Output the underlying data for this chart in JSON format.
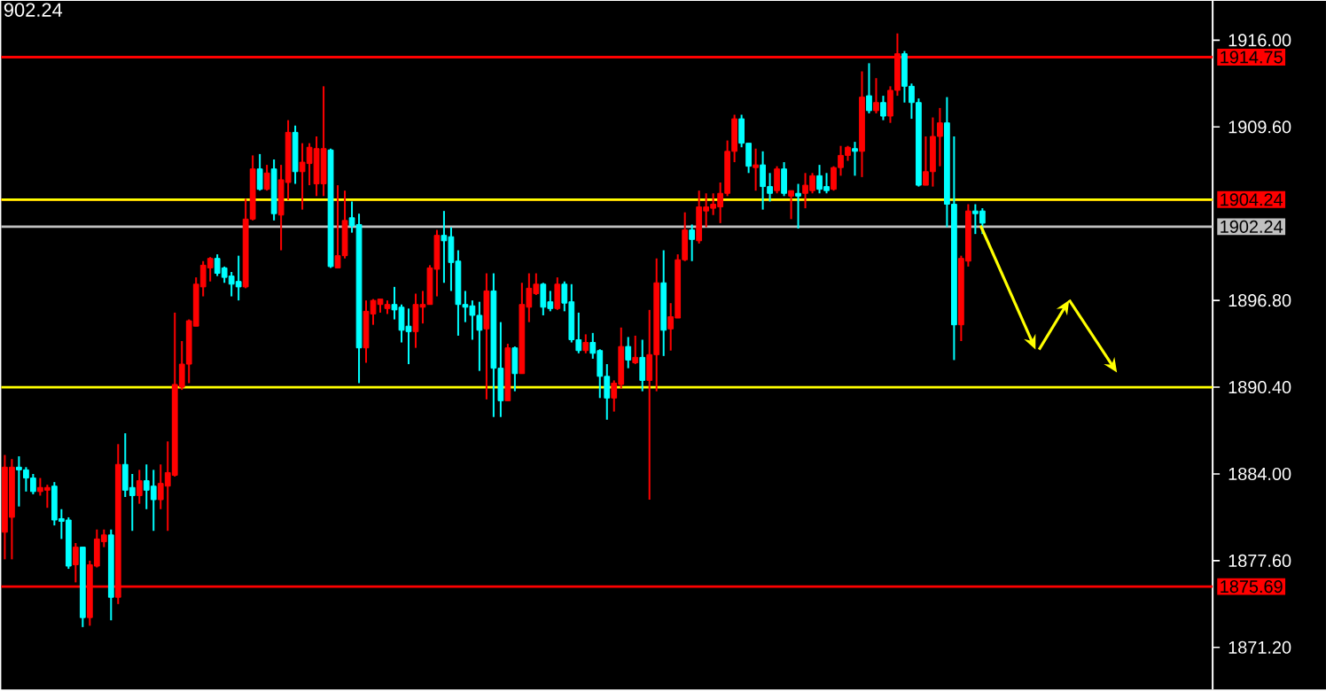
{
  "chart_data": {
    "type": "candlestick",
    "title": "902.24",
    "categories": [
      null,
      null,
      null,
      null,
      null,
      null,
      null,
      null,
      null,
      null,
      null,
      null,
      null,
      null,
      null,
      null,
      null,
      null,
      null,
      null,
      null,
      null,
      null,
      null,
      null,
      null,
      null,
      null,
      null,
      null,
      null,
      null,
      null,
      null,
      null,
      null,
      null,
      null,
      null,
      null,
      null,
      null,
      null,
      null,
      null,
      null,
      null,
      null,
      null,
      null,
      null,
      null,
      null,
      null,
      null,
      null,
      null,
      null,
      null,
      null,
      null,
      null,
      null,
      null,
      null,
      null,
      null,
      null,
      null,
      null,
      null,
      null,
      null,
      null,
      null,
      null,
      null,
      null,
      null,
      null,
      null,
      null,
      null,
      null,
      null,
      null,
      null,
      null,
      null,
      null,
      null,
      null,
      null,
      null,
      null,
      null,
      null,
      null,
      null,
      null,
      null,
      null,
      null,
      null,
      null,
      null,
      null,
      null,
      null,
      null,
      null,
      null,
      null,
      null,
      null,
      null,
      null,
      null,
      null,
      null,
      null,
      null,
      null,
      null,
      null,
      null,
      null,
      null,
      null,
      null,
      null,
      null,
      null,
      null,
      null,
      null,
      null,
      null,
      null,
      null,
      null,
      null,
      null,
      null,
      null,
      null,
      null,
      null,
      null,
      null,
      null,
      null,
      null,
      null,
      null,
      null,
      null,
      null,
      null,
      null,
      null,
      null,
      null,
      null,
      null,
      null,
      null,
      null,
      null,
      null,
      null
    ],
    "ohlc": [
      [
        1879.7,
        1885.4,
        1877.7,
        1884.5
      ],
      [
        1880.8,
        1885.1,
        1877.7,
        1884.5
      ],
      [
        1884.5,
        1885.3,
        1881.6,
        1884.3
      ],
      [
        1884.3,
        1884.5,
        1882.7,
        1883.7
      ],
      [
        1883.7,
        1884.0,
        1882.5,
        1882.7
      ],
      [
        1882.7,
        1883.7,
        1882.4,
        1883.0
      ],
      [
        1882.8,
        1883.2,
        1881.5,
        1883.0
      ],
      [
        1883.1,
        1883.4,
        1880.2,
        1880.6
      ],
      [
        1880.7,
        1881.4,
        1879.2,
        1880.5
      ],
      [
        1880.6,
        1880.8,
        1877.0,
        1877.2
      ],
      [
        1877.3,
        1878.9,
        1876.0,
        1878.6
      ],
      [
        1878.6,
        1878.6,
        1872.7,
        1873.4
      ],
      [
        1873.4,
        1877.6,
        1872.8,
        1877.3
      ],
      [
        1877.2,
        1879.9,
        1877.1,
        1879.2
      ],
      [
        1879.0,
        1879.9,
        1878.6,
        1879.5
      ],
      [
        1879.5,
        1879.9,
        1873.2,
        1874.9
      ],
      [
        1874.9,
        1886.2,
        1874.4,
        1884.7
      ],
      [
        1884.7,
        1887.0,
        1882.3,
        1882.8
      ],
      [
        1883.0,
        1884.0,
        1879.8,
        1882.4
      ],
      [
        1882.4,
        1884.3,
        1881.8,
        1883.5
      ],
      [
        1883.5,
        1884.7,
        1881.4,
        1882.8
      ],
      [
        1883.1,
        1884.3,
        1879.8,
        1882.1
      ],
      [
        1882.1,
        1884.7,
        1881.4,
        1883.3
      ],
      [
        1883.1,
        1886.4,
        1879.8,
        1884.1
      ],
      [
        1883.9,
        1895.9,
        1883.8,
        1890.6
      ],
      [
        1890.4,
        1893.8,
        1890.2,
        1892.1
      ],
      [
        1892.1,
        1895.4,
        1890.7,
        1895.3
      ],
      [
        1894.9,
        1898.5,
        1894.9,
        1898.0
      ],
      [
        1897.8,
        1899.7,
        1897.1,
        1899.4
      ],
      [
        1899.2,
        1900.0,
        1898.2,
        1899.9
      ],
      [
        1899.9,
        1900.2,
        1898.6,
        1898.8
      ],
      [
        1899.2,
        1899.3,
        1898.1,
        1898.5
      ],
      [
        1898.6,
        1898.9,
        1897.1,
        1898.0
      ],
      [
        1898.2,
        1900.1,
        1896.8,
        1897.8
      ],
      [
        1897.8,
        1904.3,
        1897.7,
        1902.8
      ],
      [
        1902.8,
        1907.5,
        1902.7,
        1906.5
      ],
      [
        1906.5,
        1907.6,
        1904.9,
        1905.0
      ],
      [
        1905.0,
        1906.8,
        1904.9,
        1906.2
      ],
      [
        1906.5,
        1907.2,
        1902.7,
        1903.2
      ],
      [
        1903.1,
        1906.8,
        1900.5,
        1905.7
      ],
      [
        1905.5,
        1910.1,
        1904.2,
        1909.2
      ],
      [
        1909.2,
        1909.7,
        1905.4,
        1906.3
      ],
      [
        1906.3,
        1908.4,
        1903.5,
        1907.0
      ],
      [
        1906.9,
        1908.4,
        1905.3,
        1908.1
      ],
      [
        1905.4,
        1908.9,
        1904.5,
        1908.0
      ],
      [
        1905.4,
        1912.6,
        1904.5,
        1908.0
      ],
      [
        1907.9,
        1908.0,
        1899.2,
        1899.3
      ],
      [
        1899.2,
        1905.3,
        1899.2,
        1900.1
      ],
      [
        1900.1,
        1904.9,
        1899.9,
        1902.7
      ],
      [
        1902.9,
        1904.1,
        1901.8,
        1902.3
      ],
      [
        1902.4,
        1903.2,
        1890.7,
        1893.3
      ],
      [
        1893.3,
        1896.8,
        1892.2,
        1896.0
      ],
      [
        1895.8,
        1896.9,
        1895.0,
        1896.8
      ],
      [
        1896.5,
        1896.9,
        1895.9,
        1896.9
      ],
      [
        1896.2,
        1896.8,
        1895.8,
        1896.5
      ],
      [
        1896.5,
        1897.8,
        1895.4,
        1896.1
      ],
      [
        1896.3,
        1896.5,
        1893.7,
        1894.6
      ],
      [
        1894.9,
        1896.2,
        1892.1,
        1894.5
      ],
      [
        1894.5,
        1897.3,
        1893.3,
        1896.5
      ],
      [
        1896.3,
        1897.5,
        1895.1,
        1896.5
      ],
      [
        1896.5,
        1899.4,
        1896.5,
        1899.2
      ],
      [
        1899.1,
        1902.0,
        1897.1,
        1901.6
      ],
      [
        1901.6,
        1903.4,
        1898.1,
        1901.2
      ],
      [
        1901.5,
        1902.2,
        1897.5,
        1899.6
      ],
      [
        1899.7,
        1900.5,
        1894.2,
        1896.5
      ],
      [
        1896.5,
        1897.5,
        1895.2,
        1896.3
      ],
      [
        1896.4,
        1896.8,
        1893.9,
        1895.7
      ],
      [
        1895.7,
        1896.7,
        1891.6,
        1894.6
      ],
      [
        1894.7,
        1898.8,
        1889.5,
        1897.5
      ],
      [
        1897.5,
        1898.8,
        1888.2,
        1891.8
      ],
      [
        1891.8,
        1895.2,
        1888.2,
        1889.4
      ],
      [
        1889.4,
        1893.6,
        1889.4,
        1893.3
      ],
      [
        1893.3,
        1893.4,
        1890.1,
        1891.4
      ],
      [
        1891.4,
        1898.1,
        1891.4,
        1896.5
      ],
      [
        1896.3,
        1898.8,
        1895.2,
        1897.7
      ],
      [
        1897.3,
        1898.8,
        1897.2,
        1898.0
      ],
      [
        1898.0,
        1898.1,
        1895.7,
        1896.3
      ],
      [
        1896.7,
        1897.5,
        1896.0,
        1896.2
      ],
      [
        1896.2,
        1898.5,
        1896.1,
        1898.0
      ],
      [
        1898.0,
        1898.2,
        1896.0,
        1896.6
      ],
      [
        1896.7,
        1898.0,
        1893.7,
        1893.9
      ],
      [
        1893.9,
        1895.9,
        1892.9,
        1893.1
      ],
      [
        1893.1,
        1894.3,
        1892.9,
        1893.7
      ],
      [
        1893.7,
        1894.4,
        1892.5,
        1892.9
      ],
      [
        1893.1,
        1893.2,
        1889.6,
        1891.2
      ],
      [
        1891.2,
        1892.1,
        1888.0,
        1889.6
      ],
      [
        1889.6,
        1890.9,
        1888.6,
        1890.7
      ],
      [
        1890.6,
        1894.8,
        1890.3,
        1893.4
      ],
      [
        1893.4,
        1894.1,
        1891.8,
        1892.4
      ],
      [
        1892.2,
        1894.2,
        1892.1,
        1892.6
      ],
      [
        1892.6,
        1893.9,
        1890.1,
        1890.9
      ],
      [
        1890.9,
        1896.1,
        1882.1,
        1892.8
      ],
      [
        1892.8,
        1899.9,
        1890.1,
        1898.1
      ],
      [
        1898.1,
        1900.5,
        1892.7,
        1894.6
      ],
      [
        1894.7,
        1896.6,
        1893.1,
        1895.6
      ],
      [
        1895.5,
        1900.2,
        1895.5,
        1899.8
      ],
      [
        1899.8,
        1903.3,
        1899.7,
        1902.0
      ],
      [
        1902.0,
        1902.4,
        1899.7,
        1901.3
      ],
      [
        1901.2,
        1904.9,
        1901.0,
        1903.7
      ],
      [
        1903.4,
        1904.7,
        1902.2,
        1903.7
      ],
      [
        1903.6,
        1904.7,
        1903.1,
        1903.9
      ],
      [
        1903.7,
        1905.5,
        1902.5,
        1904.7
      ],
      [
        1904.7,
        1908.6,
        1904.5,
        1907.8
      ],
      [
        1907.8,
        1910.5,
        1907.0,
        1910.2
      ],
      [
        1910.2,
        1910.5,
        1908.1,
        1908.4
      ],
      [
        1908.4,
        1908.4,
        1906.2,
        1906.7
      ],
      [
        1906.6,
        1908.0,
        1904.9,
        1906.8
      ],
      [
        1906.8,
        1907.8,
        1903.5,
        1905.2
      ],
      [
        1905.2,
        1906.2,
        1904.1,
        1904.7
      ],
      [
        1904.9,
        1906.7,
        1904.7,
        1906.5
      ],
      [
        1906.5,
        1907.0,
        1904.5,
        1904.7
      ],
      [
        1904.5,
        1904.9,
        1902.8,
        1904.9
      ],
      [
        1904.7,
        1905.4,
        1902.1,
        1904.5
      ],
      [
        1904.7,
        1906.2,
        1903.6,
        1905.3
      ],
      [
        1904.9,
        1906.2,
        1904.7,
        1906.0
      ],
      [
        1906.0,
        1906.8,
        1904.7,
        1905.0
      ],
      [
        1905.2,
        1906.2,
        1904.7,
        1904.9
      ],
      [
        1905.0,
        1906.7,
        1904.9,
        1906.6
      ],
      [
        1906.6,
        1908.2,
        1906.0,
        1907.5
      ],
      [
        1907.5,
        1908.2,
        1907.1,
        1908.1
      ],
      [
        1908.0,
        1908.5,
        1906.0,
        1907.8
      ],
      [
        1907.8,
        1913.7,
        1905.9,
        1911.8
      ],
      [
        1911.9,
        1914.3,
        1910.6,
        1910.8
      ],
      [
        1910.8,
        1913.2,
        1910.6,
        1911.4
      ],
      [
        1911.4,
        1911.9,
        1910.1,
        1910.4
      ],
      [
        1910.4,
        1912.6,
        1909.9,
        1912.3
      ],
      [
        1912.3,
        1916.5,
        1911.9,
        1915.0
      ],
      [
        1915.0,
        1915.2,
        1911.4,
        1912.6
      ],
      [
        1912.6,
        1912.8,
        1910.2,
        1911.4
      ],
      [
        1911.4,
        1911.7,
        1905.2,
        1905.3
      ],
      [
        1905.3,
        1908.9,
        1905.3,
        1906.3
      ],
      [
        1906.3,
        1910.3,
        1905.2,
        1908.9
      ],
      [
        1908.9,
        1911.0,
        1906.7,
        1909.9
      ],
      [
        1909.9,
        1911.8,
        1902.2,
        1903.9
      ],
      [
        1903.9,
        1908.9,
        1892.4,
        1895.0
      ],
      [
        1895.0,
        1900.1,
        1893.8,
        1899.9
      ],
      [
        1899.7,
        1903.9,
        1899.3,
        1903.4
      ],
      [
        1903.4,
        1903.9,
        1901.7,
        1903.2
      ],
      [
        1903.4,
        1903.6,
        1901.7,
        1902.5
      ],
      null,
      null,
      null,
      null,
      null,
      null,
      null,
      null,
      null,
      null,
      null,
      null,
      null,
      null,
      null,
      null,
      null,
      null,
      null,
      null,
      null,
      null,
      null,
      null,
      null,
      null,
      null,
      null,
      null,
      null,
      null,
      null
    ],
    "colors": [
      "#ff0000",
      "#ff0000",
      "#00ffff",
      "#00ffff",
      "#00ffff",
      "#ff0000",
      "#ff0000",
      "#00ffff",
      "#00ffff",
      "#00ffff",
      "#ff0000",
      "#00ffff",
      "#ff0000",
      "#ff0000",
      "#ff0000",
      "#00ffff",
      "#ff0000",
      "#00ffff",
      "#00ffff",
      "#ff0000",
      "#00ffff",
      "#00ffff",
      "#ff0000",
      "#ff0000",
      "#ff0000",
      "#ff0000",
      "#ff0000",
      "#ff0000",
      "#ff0000",
      "#ff0000",
      "#00ffff",
      "#00ffff",
      "#00ffff",
      "#00ffff",
      "#ff0000",
      "#ff0000",
      "#00ffff",
      "#ff0000",
      "#00ffff",
      "#ff0000",
      "#ff0000",
      "#00ffff",
      "#ff0000",
      "#ff0000",
      "#ff0000",
      "#ff0000",
      "#00ffff",
      "#ff0000",
      "#ff0000",
      "#00ffff",
      "#00ffff",
      "#ff0000",
      "#ff0000",
      "#ff0000",
      "#ff0000",
      "#00ffff",
      "#00ffff",
      "#00ffff",
      "#ff0000",
      "#ff0000",
      "#ff0000",
      "#ff0000",
      "#00ffff",
      "#00ffff",
      "#00ffff",
      "#00ffff",
      "#00ffff",
      "#00ffff",
      "#ff0000",
      "#00ffff",
      "#00ffff",
      "#ff0000",
      "#00ffff",
      "#ff0000",
      "#ff0000",
      "#ff0000",
      "#00ffff",
      "#00ffff",
      "#ff0000",
      "#00ffff",
      "#00ffff",
      "#00ffff",
      "#ff0000",
      "#00ffff",
      "#00ffff",
      "#00ffff",
      "#ff0000",
      "#ff0000",
      "#00ffff",
      "#ff0000",
      "#00ffff",
      "#ff0000",
      "#ff0000",
      "#00ffff",
      "#ff0000",
      "#ff0000",
      "#ff0000",
      "#00ffff",
      "#ff0000",
      "#ff0000",
      "#ff0000",
      "#ff0000",
      "#ff0000",
      "#ff0000",
      "#00ffff",
      "#00ffff",
      "#ff0000",
      "#00ffff",
      "#00ffff",
      "#ff0000",
      "#00ffff",
      "#ff0000",
      "#00ffff",
      "#ff0000",
      "#ff0000",
      "#00ffff",
      "#00ffff",
      "#ff0000",
      "#ff0000",
      "#ff0000",
      "#00ffff",
      "#ff0000",
      "#00ffff",
      "#ff0000",
      "#00ffff",
      "#ff0000",
      "#ff0000",
      "#00ffff",
      "#00ffff",
      "#00ffff",
      "#ff0000",
      "#ff0000",
      "#ff0000",
      "#00ffff",
      "#00ffff",
      "#ff0000",
      "#ff0000",
      "#00ffff",
      "#00ffff",
      null,
      null,
      null,
      null,
      null,
      null,
      null,
      null,
      null,
      null,
      null,
      null,
      null,
      null,
      null,
      null,
      null,
      null,
      null,
      null,
      null,
      null,
      null,
      null,
      null,
      null,
      null,
      null,
      null,
      null,
      null,
      null
    ],
    "ylim": [
      1868.1,
      1918.9
    ],
    "yticks": [
      {
        "value": 1871.2,
        "label": "1871.20"
      },
      {
        "value": 1877.6,
        "label": "1877.60"
      },
      {
        "value": 1884,
        "label": "1884.00"
      },
      {
        "value": 1890.4,
        "label": "1890.40"
      },
      {
        "value": 1896.8,
        "label": "1896.80"
      },
      {
        "value": 1909.6,
        "label": "1909.60"
      },
      {
        "value": 1916,
        "label": "1916.00"
      }
    ],
    "tick_labels": "y",
    "ref_lines": [
      {
        "axis": "y",
        "value": 1914.75,
        "label": "1914.75",
        "color": "#ff0000"
      },
      {
        "axis": "y",
        "value": 1904.24,
        "label": "1904.24",
        "color": "#ff0000"
      },
      {
        "axis": "y",
        "value": 1904.24,
        "label": null,
        "color": "#ffff00"
      },
      {
        "axis": "y",
        "value": 1902.24,
        "label": "1902.24",
        "color": "#c0c0c0"
      },
      {
        "axis": "y",
        "value": 1890.4,
        "label": null,
        "color": "#ffff00"
      },
      {
        "axis": "y",
        "value": 1875.69,
        "label": "1875.69",
        "color": "#ff0000"
      }
    ]
  }
}
